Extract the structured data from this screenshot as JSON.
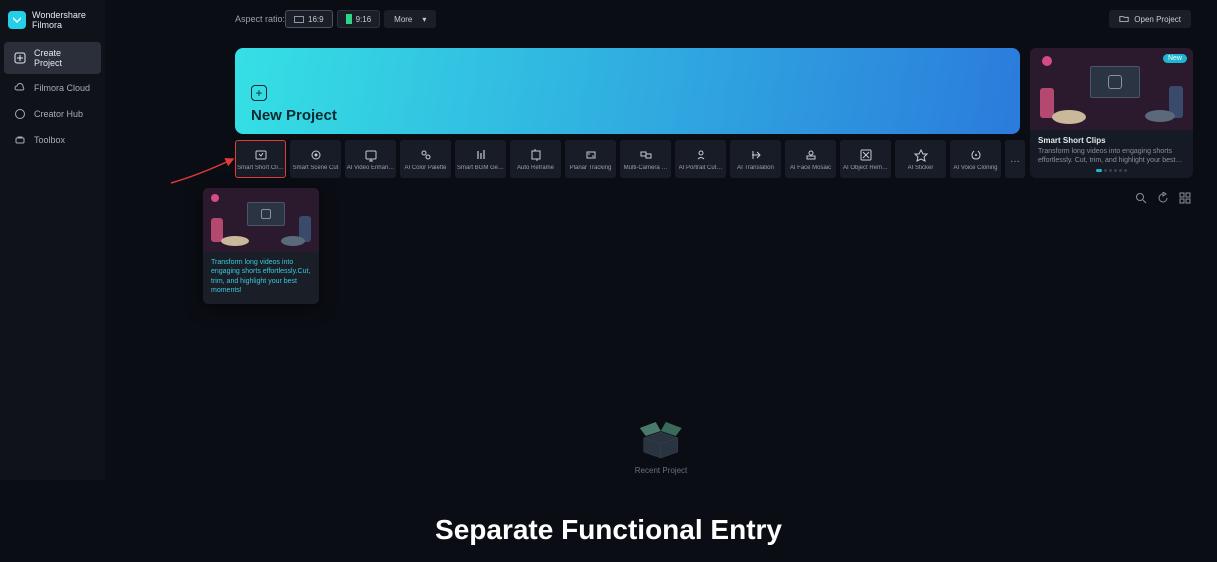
{
  "app": {
    "brand_line1": "Wondershare",
    "brand_line2": "Filmora"
  },
  "sidebar": {
    "items": [
      {
        "label": "Create Project",
        "active": true
      },
      {
        "label": "Filmora Cloud",
        "active": false
      },
      {
        "label": "Creator Hub",
        "active": false
      },
      {
        "label": "Toolbox",
        "active": false
      }
    ]
  },
  "topbar": {
    "aspect_label": "Aspect ratio:",
    "ratio_wide": "16:9",
    "ratio_vert": "9:16",
    "more_label": "More",
    "open_project": "Open Project"
  },
  "hero": {
    "title": "New Project",
    "bg_gradient_from": "#35e0e4",
    "bg_gradient_to": "#2b7bdc"
  },
  "feature": {
    "badge": "New",
    "title": "Smart Short Clips",
    "desc": "Transform long videos into engaging shorts effortlessly. Cut, trim, and highlight your best…",
    "thumb_bg": "#2b1a2e"
  },
  "tiles": [
    {
      "label": "Smart Short Cli…",
      "highlighted": true
    },
    {
      "label": "Smart Scene Cut"
    },
    {
      "label": "AI Video Enhan…"
    },
    {
      "label": "AI Color Palette"
    },
    {
      "label": "Smart BGM Ge…"
    },
    {
      "label": "Auto Reframe"
    },
    {
      "label": "Planar Tracking"
    },
    {
      "label": "Multi-Camera …"
    },
    {
      "label": "AI Portrait Cut…"
    },
    {
      "label": "AI Translation"
    },
    {
      "label": "AI Face Mosaic"
    },
    {
      "label": "AI Object Rem…"
    },
    {
      "label": "AI Sticker"
    },
    {
      "label": "AI Voice Cloning"
    }
  ],
  "tooltip": {
    "text": "Transform long videos into engaging shorts effortlessly.Cut, trim, and highlight your best moments!",
    "thumb_bg": "#2b1a2e"
  },
  "empty": {
    "label": "Recent Project"
  },
  "caption": "Separate Functional Entry",
  "colors": {
    "bg": "#0b0d14",
    "panel": "#151a24",
    "accent": "#1fb6d4",
    "highlight_border": "#e03a3a",
    "arrow": "#e03a3a"
  }
}
